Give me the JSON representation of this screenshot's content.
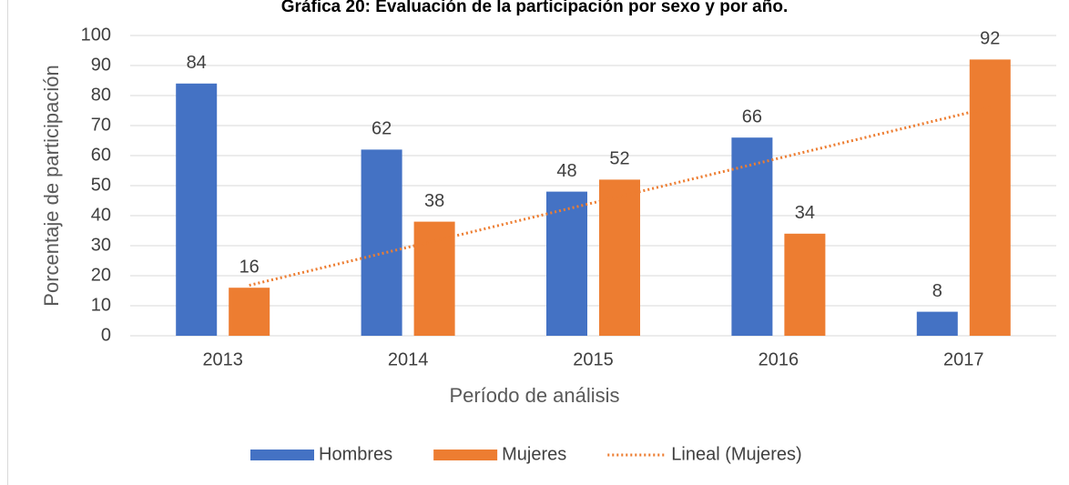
{
  "chart_data": {
    "type": "bar",
    "title": "Gráfica 20: Evaluación de la participación por sexo y por año.",
    "x_label": "Período de análisis",
    "y_label": "Porcentaje de participación",
    "categories": [
      "2013",
      "2014",
      "2015",
      "2016",
      "2017"
    ],
    "series": [
      {
        "name": "Hombres",
        "color": "#4472c4",
        "values": [
          84,
          62,
          48,
          66,
          8
        ]
      },
      {
        "name": "Mujeres",
        "color": "#ed7d31",
        "values": [
          16,
          38,
          52,
          34,
          92
        ]
      }
    ],
    "trendline": {
      "name": "Lineal (Mujeres)",
      "series": 1,
      "color": "#ed7d31"
    },
    "ylim": [
      0,
      100
    ],
    "yticks": [
      0,
      10,
      20,
      30,
      40,
      50,
      60,
      70,
      80,
      90,
      100
    ],
    "grid": true,
    "legend": "bottom"
  }
}
